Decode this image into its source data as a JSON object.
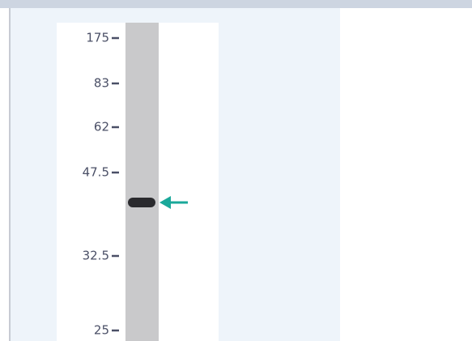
{
  "blot": {
    "markers": [
      "175",
      "83",
      "62",
      "47.5",
      "32.5",
      "25"
    ]
  }
}
